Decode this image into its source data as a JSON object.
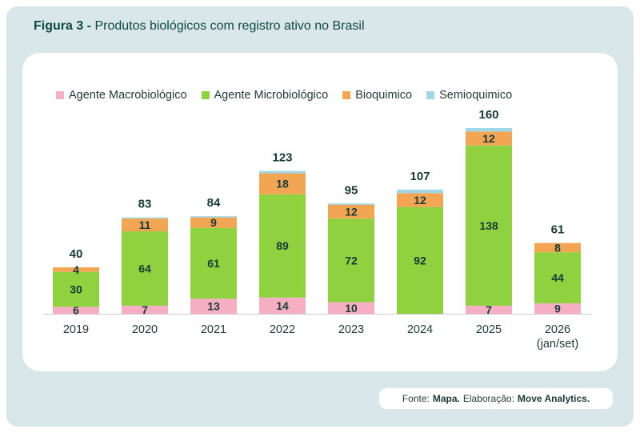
{
  "figure": {
    "label": "Figura 3 -",
    "title": "Produtos biológicos com registro ativo no Brasil"
  },
  "source": {
    "prefix": "Fonte:",
    "source_name": "Mapa.",
    "elab_label": "Elaboração:",
    "elab_name": "Move Analytics."
  },
  "chart_data": {
    "type": "bar",
    "stacked": true,
    "title": "",
    "xlabel": "",
    "ylabel": "",
    "legend_position": "top",
    "grid": false,
    "categories": [
      "2019",
      "2020",
      "2021",
      "2022",
      "2023",
      "2024",
      "2025",
      "2026\n(jan/set)"
    ],
    "totals": [
      40,
      83,
      84,
      123,
      95,
      107,
      160,
      61
    ],
    "series": [
      {
        "name": "Agente Macrobiológico",
        "color": "#f6aec3",
        "values": [
          6,
          7,
          13,
          14,
          10,
          0,
          7,
          9
        ],
        "labels": [
          "6",
          "7",
          "13",
          "14",
          "10",
          "",
          "7",
          "9"
        ]
      },
      {
        "name": "Agente Microbiológico",
        "color": "#8fd13f",
        "values": [
          30,
          64,
          61,
          89,
          72,
          92,
          138,
          44
        ],
        "labels": [
          "30",
          "64",
          "61",
          "89",
          "72",
          "92",
          "138",
          "44"
        ]
      },
      {
        "name": "Bioquimico",
        "color": "#f2a653",
        "values": [
          4,
          11,
          9,
          18,
          12,
          12,
          12,
          8
        ],
        "labels": [
          "4",
          "11",
          "9",
          "18",
          "12",
          "12",
          "12",
          "8"
        ]
      },
      {
        "name": "Semioquimico",
        "color": "#9fd6e8",
        "values": [
          0,
          1,
          1,
          2,
          1,
          3,
          3,
          0
        ],
        "labels": [
          "",
          "",
          "",
          "",
          "",
          "",
          "",
          ""
        ]
      }
    ]
  }
}
